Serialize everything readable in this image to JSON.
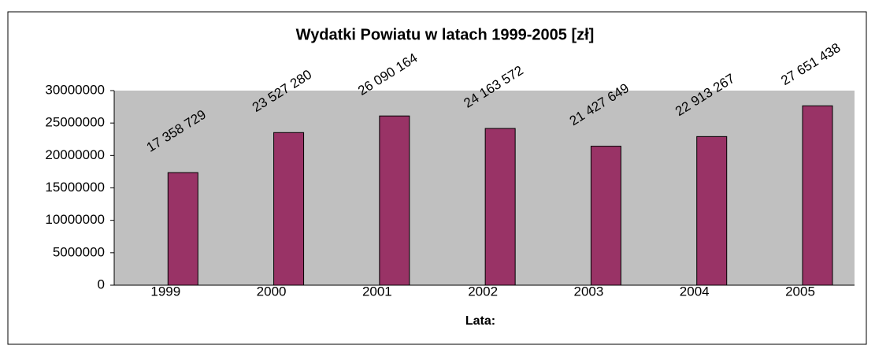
{
  "chart_data": {
    "type": "bar",
    "title": "Wydatki Powiatu w latach 1999-2005 [zł]",
    "x_label": "Lata:",
    "categories": [
      "1999",
      "2000",
      "2001",
      "2002",
      "2003",
      "2004",
      "2005"
    ],
    "values": [
      17358729,
      23527280,
      26090164,
      24163572,
      21427649,
      22913267,
      27651438
    ],
    "value_labels": [
      "17 358 729",
      "23 527 280",
      "26 090 164",
      "24 163 572",
      "21 427 649",
      "22 913 267",
      "27 651 438"
    ],
    "color": "#993366",
    "ylim": [
      0,
      30000000
    ],
    "yticks": [
      0,
      5000000,
      10000000,
      15000000,
      20000000,
      25000000,
      30000000
    ],
    "grid": false
  }
}
